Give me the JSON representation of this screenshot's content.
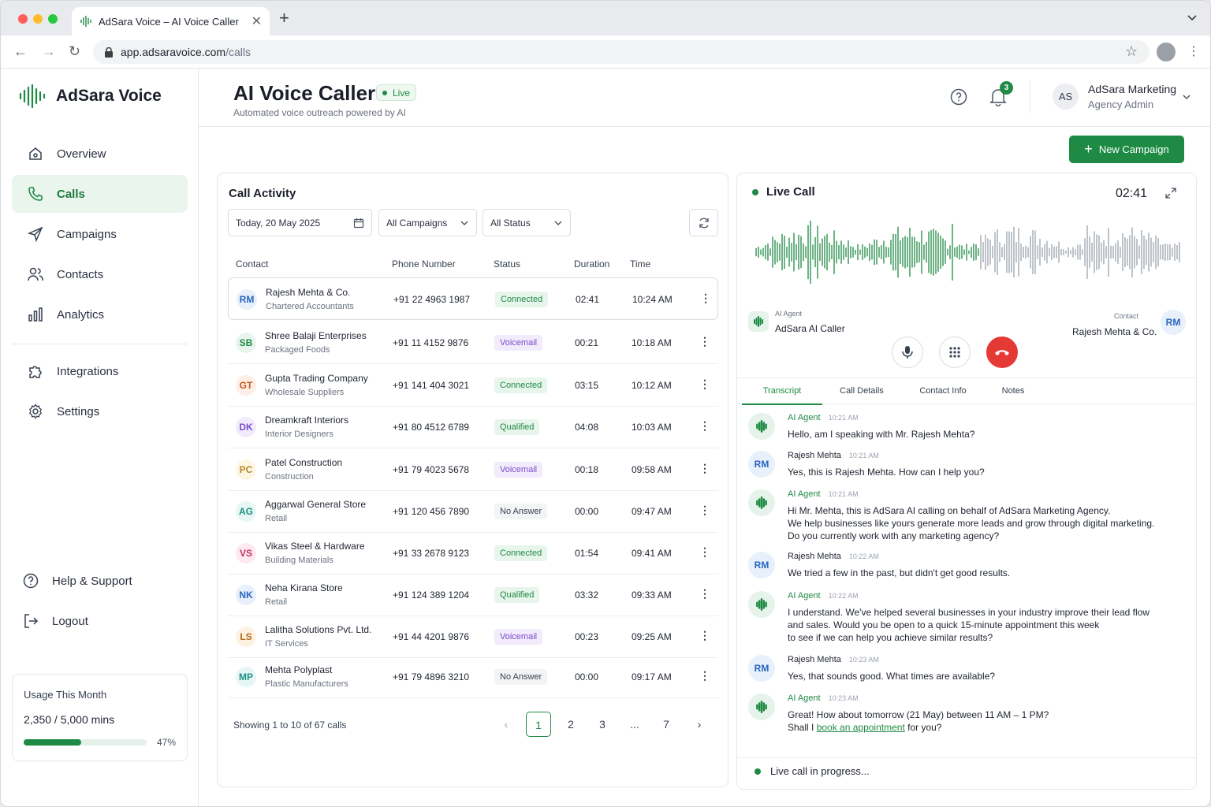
{
  "browser": {
    "tab_title": "AdSara Voice – AI Voice Caller",
    "url_host": "app.adsaravoice.com",
    "url_path": "/calls"
  },
  "brand": {
    "name": "AdSara Voice",
    "accent": "#1e8a44"
  },
  "sidebar": {
    "items": [
      {
        "label": "Overview",
        "icon": "home-icon"
      },
      {
        "label": "Calls",
        "icon": "phone-icon",
        "active": true
      },
      {
        "label": "Campaigns",
        "icon": "send-icon"
      },
      {
        "label": "Contacts",
        "icon": "users-icon"
      },
      {
        "label": "Analytics",
        "icon": "bar-chart-icon"
      },
      {
        "label": "Integrations",
        "icon": "puzzle-icon"
      },
      {
        "label": "Settings",
        "icon": "gear-icon"
      }
    ],
    "help": "Help & Support",
    "logout": "Logout",
    "usage": {
      "title": "Usage This Month",
      "value": "2,350 / 5,000 mins",
      "percent_label": "47%",
      "percent": 47
    }
  },
  "header": {
    "title": "AI Voice Caller",
    "live_badge": "Live",
    "subtitle": "Automated voice outreach powered by AI",
    "notifications": "3",
    "user_initials": "AS",
    "user_name": "AdSara Marketing",
    "user_role": "Agency Admin",
    "new_campaign": "New Campaign"
  },
  "activity": {
    "title": "Call Activity",
    "date_filter": "Today, 20 May 2025",
    "campaign_filter": "All Campaigns",
    "status_filter": "All Status",
    "columns": [
      "Contact",
      "Phone Number",
      "Status",
      "Duration",
      "Time"
    ],
    "rows": [
      {
        "initials": "RM",
        "name": "Rajesh Mehta & Co.",
        "sub": "Chartered Accountants",
        "phone": "+91 22 4963 1987",
        "status": "Connected",
        "duration": "02:41",
        "time": "10:24 AM"
      },
      {
        "initials": "SB",
        "name": "Shree Balaji Enterprises",
        "sub": "Packaged Foods",
        "phone": "+91 11 4152 9876",
        "status": "Voicemail",
        "duration": "00:21",
        "time": "10:18 AM"
      },
      {
        "initials": "GT",
        "name": "Gupta Trading Company",
        "sub": "Wholesale Suppliers",
        "phone": "+91 141 404 3021",
        "status": "Connected",
        "duration": "03:15",
        "time": "10:12 AM"
      },
      {
        "initials": "DK",
        "name": "Dreamkraft Interiors",
        "sub": "Interior Designers",
        "phone": "+91 80 4512 6789",
        "status": "Qualified",
        "duration": "04:08",
        "time": "10:03 AM"
      },
      {
        "initials": "PC",
        "name": "Patel Construction",
        "sub": "Construction",
        "phone": "+91 79 4023 5678",
        "status": "Voicemail",
        "duration": "00:18",
        "time": "09:58 AM"
      },
      {
        "initials": "AG",
        "name": "Aggarwal General Store",
        "sub": "Retail",
        "phone": "+91 120 456 7890",
        "status": "No Answer",
        "duration": "00:00",
        "time": "09:47 AM"
      },
      {
        "initials": "VS",
        "name": "Vikas Steel & Hardware",
        "sub": "Building Materials",
        "phone": "+91 33 2678 9123",
        "status": "Connected",
        "duration": "01:54",
        "time": "09:41 AM"
      },
      {
        "initials": "NK",
        "name": "Neha Kirana Store",
        "sub": "Retail",
        "phone": "+91 124 389 1204",
        "status": "Qualified",
        "duration": "03:32",
        "time": "09:33 AM"
      },
      {
        "initials": "LS",
        "name": "Lalitha Solutions Pvt. Ltd.",
        "sub": "IT Services",
        "phone": "+91 44 4201 9876",
        "status": "Voicemail",
        "duration": "00:23",
        "time": "09:25 AM"
      },
      {
        "initials": "MP",
        "name": "Mehta Polyplast",
        "sub": "Plastic Manufacturers",
        "phone": "+91 79 4896 3210",
        "status": "No Answer",
        "duration": "00:00",
        "time": "09:17 AM"
      }
    ],
    "showing": "Showing 1 to 10 of 67 calls",
    "pages": [
      "1",
      "2",
      "3",
      "...",
      "7"
    ]
  },
  "live_call": {
    "title": "Live Call",
    "timer": "02:41",
    "agent_label": "AI Agent",
    "agent_name": "AdSara AI Caller",
    "contact_label": "Contact",
    "contact_name": "Rajesh Mehta & Co.",
    "contact_initials": "RM",
    "tabs": [
      "Transcript",
      "Call Details",
      "Contact Info",
      "Notes"
    ],
    "transcript": [
      {
        "who": "AI Agent",
        "role": "ag",
        "time": "10:21 AM",
        "text": [
          "Hello, am I speaking with Mr. Rajesh Mehta?"
        ]
      },
      {
        "who": "Rajesh Mehta",
        "role": "rm",
        "time": "10:21 AM",
        "text": [
          "Yes, this is Rajesh Mehta. How can I help you?"
        ]
      },
      {
        "who": "AI Agent",
        "role": "ag",
        "time": "10:21 AM",
        "text": [
          "Hi Mr. Mehta, this is AdSara AI calling on behalf of AdSara Marketing Agency.",
          "We help businesses like yours generate more leads and grow through digital marketing.",
          "Do you currently work with any marketing agency?"
        ]
      },
      {
        "who": "Rajesh Mehta",
        "role": "rm",
        "time": "10:22 AM",
        "text": [
          "We tried a few in the past, but didn't get good results."
        ]
      },
      {
        "who": "AI Agent",
        "role": "ag",
        "time": "10:22 AM",
        "text": [
          "I understand. We've helped several businesses in your industry improve their lead flow",
          "and sales. Would you be open to a quick 15-minute appointment this week",
          "to see if we can help you achieve similar results?"
        ]
      },
      {
        "who": "Rajesh Mehta",
        "role": "rm",
        "time": "10:23 AM",
        "text": [
          "Yes, that sounds good. What times are available?"
        ]
      },
      {
        "who": "AI Agent",
        "role": "ag",
        "time": "10:23 AM",
        "text": [
          "Great! How about tomorrow (21 May) between 11 AM – 1 PM?"
        ],
        "link_pre": "Shall I ",
        "link": "book an appointment",
        "link_post": " for you?"
      }
    ],
    "status": "Live call in progress..."
  }
}
